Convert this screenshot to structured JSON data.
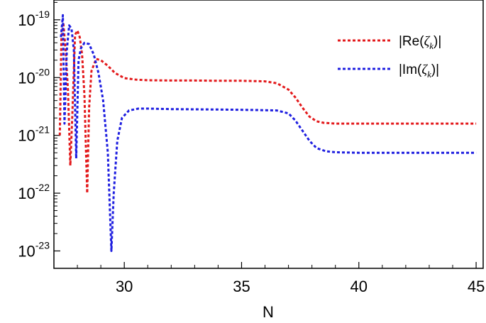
{
  "chart_data": {
    "type": "line",
    "xlabel": "N",
    "ylabel": "",
    "yscale": "log",
    "xlim": [
      27.0,
      45.3
    ],
    "ylim": [
      5e-24,
      2.2e-19
    ],
    "x_ticks": [
      "30",
      "35",
      "40",
      "45"
    ],
    "y_ticks": [
      {
        "base": "10",
        "exp": "-19"
      },
      {
        "base": "10",
        "exp": "-20"
      },
      {
        "base": "10",
        "exp": "-21"
      },
      {
        "base": "10",
        "exp": "-22"
      },
      {
        "base": "10",
        "exp": "-23"
      }
    ],
    "legend_position": "top-right",
    "grid": false,
    "series": [
      {
        "name": "|Re(ζk)|",
        "legend_prefix": "|Re(",
        "legend_symbol": "ζ",
        "legend_subscript": "k",
        "legend_suffix": ")|",
        "color": "#e31a1c",
        "x": [
          27.25,
          27.32,
          27.4,
          27.5,
          27.6,
          27.7,
          27.78,
          27.9,
          28.0,
          28.1,
          28.2,
          28.3,
          28.42,
          28.5,
          28.6,
          28.8,
          29.0,
          29.3,
          29.6,
          30.0,
          30.5,
          31.0,
          32.0,
          33.0,
          34.0,
          35.0,
          36.0,
          36.5,
          37.0,
          37.3,
          37.6,
          37.9,
          38.2,
          38.5,
          39.0,
          40.0,
          42.0,
          45.0
        ],
        "y": [
          1e-21,
          5e-20,
          9e-20,
          3e-20,
          6e-21,
          3e-22,
          2e-21,
          5.5e-20,
          6.5e-20,
          5e-20,
          2.5e-20,
          5e-21,
          1e-22,
          3e-21,
          1.3e-20,
          2.1e-20,
          2e-20,
          1.6e-20,
          1.2e-20,
          9.8e-21,
          9.2e-21,
          9e-21,
          8.9e-21,
          8.9e-21,
          8.8e-21,
          8.8e-21,
          8.6e-21,
          8e-21,
          6.2e-21,
          4.5e-21,
          3e-21,
          2.1e-21,
          1.75e-21,
          1.65e-21,
          1.6e-21,
          1.6e-21,
          1.6e-21,
          1.6e-21
        ]
      },
      {
        "name": "|Im(ζk)|",
        "legend_prefix": "|Im(",
        "legend_symbol": "ζ",
        "legend_subscript": "k",
        "legend_suffix": ")|",
        "color": "#1f1fe0",
        "x": [
          27.3,
          27.38,
          27.45,
          27.55,
          27.65,
          27.75,
          27.85,
          27.95,
          28.05,
          28.15,
          28.3,
          28.5,
          28.7,
          28.9,
          29.1,
          29.3,
          29.45,
          29.55,
          29.7,
          29.9,
          30.2,
          30.6,
          31.0,
          32.0,
          34.0,
          35.5,
          36.5,
          37.0,
          37.3,
          37.6,
          37.9,
          38.2,
          38.6,
          39.0,
          40.0,
          42.0,
          45.0
        ],
        "y": [
          5e-20,
          1.2e-19,
          1.6e-21,
          3e-20,
          8e-20,
          7e-20,
          3e-20,
          4e-22,
          2e-20,
          3.2e-20,
          4e-20,
          3.8e-20,
          2.5e-20,
          1.2e-20,
          4e-21,
          5e-22,
          1e-23,
          1e-22,
          8e-22,
          2e-21,
          2.7e-21,
          2.9e-21,
          2.9e-21,
          2.85e-21,
          2.8e-21,
          2.75e-21,
          2.7e-21,
          2.4e-21,
          1.8e-21,
          1.2e-21,
          8e-22,
          6e-22,
          5.3e-22,
          5.1e-22,
          5e-22,
          5e-22,
          5e-22
        ]
      }
    ]
  }
}
